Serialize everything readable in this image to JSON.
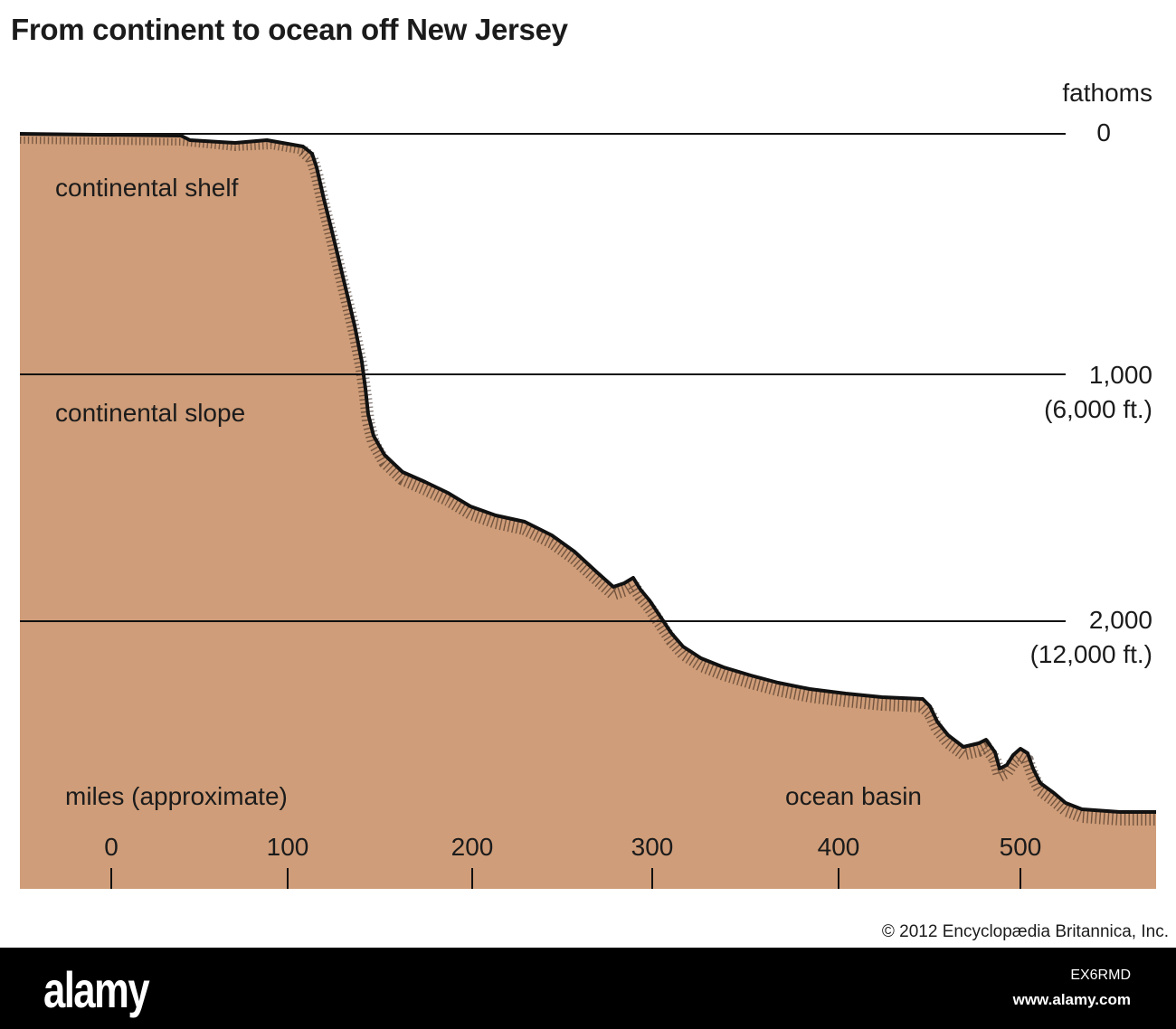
{
  "title": "From continent to ocean off New Jersey",
  "depth_axis": {
    "unit_label": "fathoms",
    "ticks": [
      {
        "value": "0",
        "feet": ""
      },
      {
        "value": "1,000",
        "feet": "(6,000 ft.)"
      },
      {
        "value": "2,000",
        "feet": "(12,000 ft.)"
      }
    ]
  },
  "distance_axis": {
    "label": "miles (approximate)",
    "ticks": [
      "0",
      "100",
      "200",
      "300",
      "400",
      "500"
    ]
  },
  "zones": {
    "shelf": "continental shelf",
    "slope": "continental slope",
    "basin": "ocean basin"
  },
  "colors": {
    "seafloor_fill": "#cf9d79",
    "outline": "#111111",
    "sediment": "#2a1a10"
  },
  "copyright": "© 2012 Encyclopædia  Britannica, Inc.",
  "footer": {
    "logo": "alamy",
    "image_id": "EX6RMD",
    "url": "www.alamy.com"
  }
}
